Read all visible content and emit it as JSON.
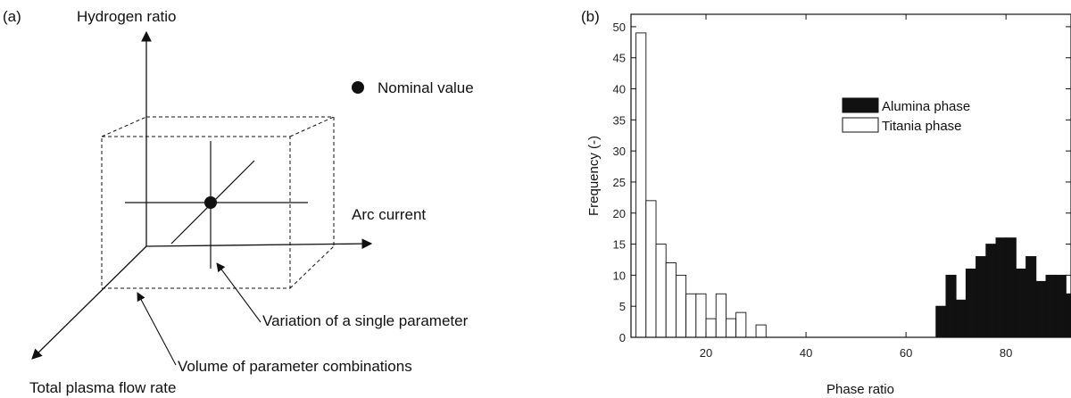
{
  "panel_a": {
    "tag": "(a)",
    "axis_y_label": "Hydrogen ratio",
    "axis_x_label": "Arc current",
    "axis_z_label": "Total plasma flow rate",
    "legend_label": "Nominal value",
    "annotation_variation": "Variation of a single parameter",
    "annotation_volume": "Volume of parameter combinations"
  },
  "panel_b": {
    "tag": "(b)"
  },
  "chart_data": {
    "type": "bar",
    "xlabel": "Phase ratio",
    "ylabel": "Frequency (-)",
    "xlim": [
      5,
      93
    ],
    "ylim": [
      0,
      52
    ],
    "x_ticks": [
      20,
      40,
      60,
      80
    ],
    "y_ticks": [
      0,
      5,
      10,
      15,
      20,
      25,
      30,
      35,
      40,
      45,
      50
    ],
    "bin_width": 2,
    "legend_position": "top-right",
    "series": [
      {
        "name": "Alumina phase",
        "color": "#111111",
        "bin_starts": [
          66,
          68,
          70,
          72,
          74,
          76,
          78,
          80,
          82,
          84,
          86,
          88,
          90,
          92
        ],
        "values": [
          5,
          10,
          6,
          11,
          13,
          15,
          16,
          16,
          11,
          13,
          9,
          10,
          10,
          7
        ]
      },
      {
        "name": "Titania phase",
        "color": "#ffffff",
        "bin_starts": [
          6,
          8,
          10,
          12,
          14,
          16,
          18,
          20,
          22,
          24,
          26,
          28,
          30
        ],
        "values": [
          49,
          22,
          15,
          12,
          10,
          7,
          7,
          3,
          7,
          3,
          4,
          0,
          2
        ]
      }
    ]
  }
}
